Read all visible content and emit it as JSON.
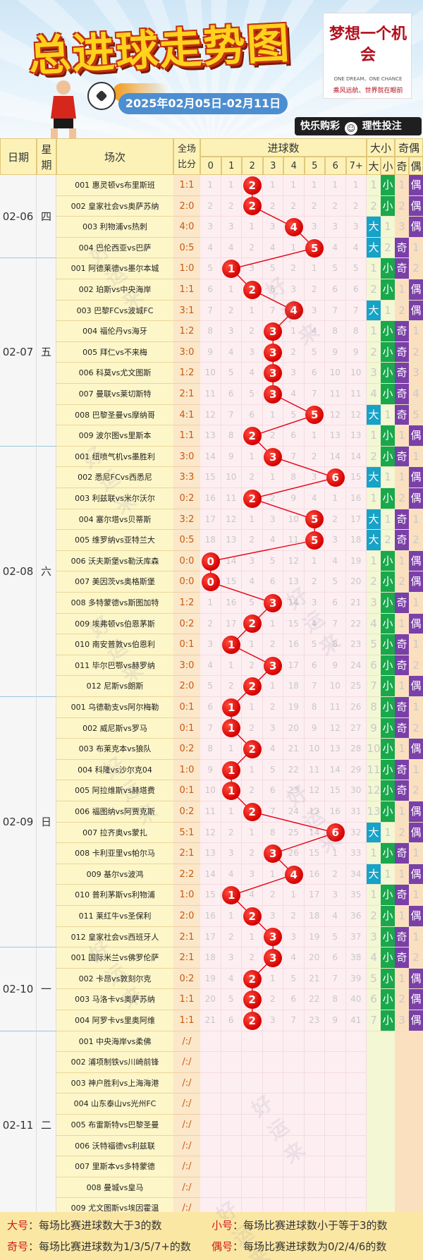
{
  "header": {
    "title": "总进球走势图",
    "date_range": "2025年02月05日-02月11日",
    "logo_text": "梦想一个机会",
    "logo_en": "ONE DREAM、ONE CHANCE",
    "logo_sub": "乘风远航、世界就在眼前",
    "slogan_left": "快乐购彩",
    "slogan_right": "理性投注",
    "watermark": "好运来"
  },
  "table_header": {
    "date": "日期",
    "week_top": "星",
    "week_bottom": "期",
    "match": "场次",
    "score_top": "全场",
    "score_bottom": "比分",
    "goals": "进球数",
    "goal_cols": [
      "0",
      "1",
      "2",
      "3",
      "4",
      "5",
      "6",
      "7+"
    ],
    "bigsmall": "大小",
    "big": "大",
    "small": "小",
    "oddeven": "奇偶",
    "odd": "奇",
    "even": "偶"
  },
  "colors": {
    "big": "#17a2c8",
    "small": "#19a84b",
    "odd": "#7b3fa8",
    "even": "#7b3fa8",
    "ball": "#e60012"
  },
  "chart_data": {
    "type": "table",
    "title": "总进球走势图",
    "days": [
      {
        "date": "02-06",
        "week": "四",
        "rows": 4
      },
      {
        "date": "02-07",
        "week": "五",
        "rows": 9
      },
      {
        "date": "02-08",
        "week": "六",
        "rows": 12
      },
      {
        "date": "02-09",
        "week": "日",
        "rows": 12
      },
      {
        "date": "02-10",
        "week": "一",
        "rows": 4
      },
      {
        "date": "02-11",
        "week": "二",
        "rows": 9
      }
    ],
    "matches": [
      {
        "name": "001 惠灵顿vs布里斯班",
        "score": "1:1",
        "goals": 2,
        "omit": [
          1,
          1,
          null,
          1,
          1,
          1,
          1,
          1
        ],
        "bs": "small",
        "bs_omit": 1,
        "oe": "even",
        "oe_omit": 1
      },
      {
        "name": "002 皇家社会vs奥萨苏纳",
        "score": "2:0",
        "goals": 2,
        "omit": [
          2,
          2,
          null,
          2,
          2,
          2,
          2,
          2
        ],
        "bs": "small",
        "bs_omit": 2,
        "oe": "even",
        "oe_omit": 2
      },
      {
        "name": "003 利物浦vs热刺",
        "score": "4:0",
        "goals": 4,
        "omit": [
          3,
          3,
          1,
          3,
          null,
          3,
          3,
          3
        ],
        "bs": "big",
        "bs_omit": 1,
        "oe": "even",
        "oe_omit": 3
      },
      {
        "name": "004 巴伦西亚vs巴萨",
        "score": "0:5",
        "goals": 5,
        "omit": [
          4,
          4,
          2,
          4,
          1,
          null,
          4,
          4
        ],
        "bs": "big",
        "bs_omit": 2,
        "oe": "odd",
        "oe_omit": 1
      },
      {
        "name": "001 阿德莱德vs墨尔本城",
        "score": "1:0",
        "goals": 1,
        "omit": [
          5,
          null,
          3,
          5,
          2,
          1,
          5,
          5
        ],
        "bs": "small",
        "bs_omit": 1,
        "oe": "odd",
        "oe_omit": 2
      },
      {
        "name": "002 珀斯vs中央海岸",
        "score": "1:1",
        "goals": 2,
        "omit": [
          6,
          1,
          null,
          6,
          3,
          2,
          6,
          6
        ],
        "bs": "small",
        "bs_omit": 2,
        "oe": "even",
        "oe_omit": 1
      },
      {
        "name": "003 巴黎FCvs波城FC",
        "score": "3:1",
        "goals": 4,
        "omit": [
          7,
          2,
          1,
          7,
          null,
          3,
          7,
          7
        ],
        "bs": "big",
        "bs_omit": 1,
        "oe": "even",
        "oe_omit": 2
      },
      {
        "name": "004 福伦丹vs海牙",
        "score": "1:2",
        "goals": 3,
        "omit": [
          8,
          3,
          2,
          null,
          1,
          4,
          8,
          8
        ],
        "bs": "small",
        "bs_omit": 1,
        "oe": "odd",
        "oe_omit": 1
      },
      {
        "name": "005 拜仁vs不来梅",
        "score": "3:0",
        "goals": 3,
        "omit": [
          9,
          4,
          3,
          null,
          2,
          5,
          9,
          9
        ],
        "bs": "small",
        "bs_omit": 2,
        "oe": "odd",
        "oe_omit": 2
      },
      {
        "name": "006 科莫vs尤文图斯",
        "score": "1:2",
        "goals": 3,
        "omit": [
          10,
          5,
          4,
          null,
          3,
          6,
          10,
          10
        ],
        "bs": "small",
        "bs_omit": 3,
        "oe": "odd",
        "oe_omit": 3
      },
      {
        "name": "007 曼联vs莱切斯特",
        "score": "2:1",
        "goals": 3,
        "omit": [
          11,
          6,
          5,
          null,
          4,
          7,
          11,
          11
        ],
        "bs": "small",
        "bs_omit": 4,
        "oe": "odd",
        "oe_omit": 4
      },
      {
        "name": "008 巴黎圣曼vs摩纳哥",
        "score": "4:1",
        "goals": 5,
        "omit": [
          12,
          7,
          6,
          1,
          5,
          null,
          12,
          12
        ],
        "bs": "big",
        "bs_omit": 1,
        "oe": "odd",
        "oe_omit": 5
      },
      {
        "name": "009 波尔图vs里斯本",
        "score": "1:1",
        "goals": 2,
        "omit": [
          13,
          8,
          null,
          2,
          6,
          1,
          13,
          13
        ],
        "bs": "small",
        "bs_omit": 1,
        "oe": "even",
        "oe_omit": 1
      },
      {
        "name": "001 纽喷气机vs墨胜利",
        "score": "3:0",
        "goals": 3,
        "omit": [
          14,
          9,
          1,
          null,
          7,
          2,
          14,
          14
        ],
        "bs": "small",
        "bs_omit": 2,
        "oe": "odd",
        "oe_omit": 1
      },
      {
        "name": "002 悉尼FCvs西悉尼",
        "score": "3:3",
        "goals": 6,
        "omit": [
          15,
          10,
          2,
          1,
          8,
          3,
          null,
          15
        ],
        "bs": "big",
        "bs_omit": 1,
        "oe": "even",
        "oe_omit": 1
      },
      {
        "name": "003 利兹联vs米尔沃尔",
        "score": "0:2",
        "goals": 2,
        "omit": [
          16,
          11,
          null,
          2,
          9,
          4,
          1,
          16
        ],
        "bs": "small",
        "bs_omit": 1,
        "oe": "even",
        "oe_omit": 2
      },
      {
        "name": "004 塞尔塔vs贝蒂斯",
        "score": "3:2",
        "goals": 5,
        "omit": [
          17,
          12,
          1,
          3,
          10,
          null,
          2,
          17
        ],
        "bs": "big",
        "bs_omit": 1,
        "oe": "odd",
        "oe_omit": 1
      },
      {
        "name": "005 维罗纳vs亚特兰大",
        "score": "0:5",
        "goals": 5,
        "omit": [
          18,
          13,
          2,
          4,
          11,
          null,
          3,
          18
        ],
        "bs": "big",
        "bs_omit": 2,
        "oe": "odd",
        "oe_omit": 2
      },
      {
        "name": "006 沃夫斯堡vs勒沃库森",
        "score": "0:0",
        "goals": 0,
        "omit": [
          null,
          14,
          3,
          5,
          12,
          1,
          4,
          19
        ],
        "bs": "small",
        "bs_omit": 1,
        "oe": "even",
        "oe_omit": 1
      },
      {
        "name": "007 美因茨vs奥格斯堡",
        "score": "0:0",
        "goals": 0,
        "omit": [
          null,
          15,
          4,
          6,
          13,
          2,
          5,
          20
        ],
        "bs": "small",
        "bs_omit": 2,
        "oe": "even",
        "oe_omit": 2
      },
      {
        "name": "008 多特蒙德vs斯图加特",
        "score": "1:2",
        "goals": 3,
        "omit": [
          1,
          16,
          5,
          null,
          14,
          3,
          6,
          21
        ],
        "bs": "small",
        "bs_omit": 3,
        "oe": "odd",
        "oe_omit": 1
      },
      {
        "name": "009 埃弗顿vs伯恩茅斯",
        "score": "0:2",
        "goals": 2,
        "omit": [
          2,
          17,
          null,
          1,
          15,
          4,
          7,
          22
        ],
        "bs": "small",
        "bs_omit": 4,
        "oe": "even",
        "oe_omit": 1
      },
      {
        "name": "010 南安普敦vs伯恩利",
        "score": "0:1",
        "goals": 1,
        "omit": [
          3,
          null,
          1,
          2,
          16,
          5,
          8,
          23
        ],
        "bs": "small",
        "bs_omit": 5,
        "oe": "odd",
        "oe_omit": 1
      },
      {
        "name": "011 毕尔巴鄂vs赫罗纳",
        "score": "3:0",
        "goals": 3,
        "omit": [
          4,
          1,
          2,
          null,
          17,
          6,
          9,
          24
        ],
        "bs": "small",
        "bs_omit": 6,
        "oe": "odd",
        "oe_omit": 2
      },
      {
        "name": "012 尼斯vs朗斯",
        "score": "2:0",
        "goals": 2,
        "omit": [
          5,
          2,
          null,
          1,
          18,
          7,
          10,
          25
        ],
        "bs": "small",
        "bs_omit": 7,
        "oe": "even",
        "oe_omit": 1
      },
      {
        "name": "001 乌德勒支vs阿尔梅勒",
        "score": "0:1",
        "goals": 1,
        "omit": [
          6,
          null,
          1,
          2,
          19,
          8,
          11,
          26
        ],
        "bs": "small",
        "bs_omit": 8,
        "oe": "odd",
        "oe_omit": 1
      },
      {
        "name": "002 威尼斯vs罗马",
        "score": "0:1",
        "goals": 1,
        "omit": [
          7,
          null,
          2,
          3,
          20,
          9,
          12,
          27
        ],
        "bs": "small",
        "bs_omit": 9,
        "oe": "odd",
        "oe_omit": 2
      },
      {
        "name": "003 布莱克本vs狼队",
        "score": "0:2",
        "goals": 2,
        "omit": [
          8,
          1,
          null,
          4,
          21,
          10,
          13,
          28
        ],
        "bs": "small",
        "bs_omit": 10,
        "oe": "even",
        "oe_omit": 1
      },
      {
        "name": "004 科隆vs沙尔克04",
        "score": "1:0",
        "goals": 1,
        "omit": [
          9,
          null,
          1,
          5,
          22,
          11,
          14,
          29
        ],
        "bs": "small",
        "bs_omit": 11,
        "oe": "odd",
        "oe_omit": 1
      },
      {
        "name": "005 阿拉维斯vs赫塔费",
        "score": "0:1",
        "goals": 1,
        "omit": [
          10,
          null,
          2,
          6,
          23,
          12,
          15,
          30
        ],
        "bs": "small",
        "bs_omit": 12,
        "oe": "odd",
        "oe_omit": 2
      },
      {
        "name": "006 福图纳vs阿贾克斯",
        "score": "0:2",
        "goals": 2,
        "omit": [
          11,
          1,
          null,
          7,
          24,
          13,
          16,
          31
        ],
        "bs": "small",
        "bs_omit": 13,
        "oe": "even",
        "oe_omit": 1
      },
      {
        "name": "007 拉齐奥vs蒙扎",
        "score": "5:1",
        "goals": 6,
        "omit": [
          12,
          2,
          1,
          8,
          25,
          14,
          null,
          32
        ],
        "bs": "big",
        "bs_omit": 1,
        "oe": "even",
        "oe_omit": 2
      },
      {
        "name": "008 卡利亚里vs帕尔马",
        "score": "2:1",
        "goals": 3,
        "omit": [
          13,
          3,
          2,
          null,
          26,
          15,
          1,
          33
        ],
        "bs": "small",
        "bs_omit": 1,
        "oe": "odd",
        "oe_omit": 1
      },
      {
        "name": "009 基尔vs波鸿",
        "score": "2:2",
        "goals": 4,
        "omit": [
          14,
          4,
          3,
          1,
          null,
          16,
          2,
          34
        ],
        "bs": "big",
        "bs_omit": 1,
        "oe": "even",
        "oe_omit": 1
      },
      {
        "name": "010 普利茅斯vs利物浦",
        "score": "1:0",
        "goals": 1,
        "omit": [
          15,
          null,
          4,
          2,
          1,
          17,
          3,
          35
        ],
        "bs": "small",
        "bs_omit": 1,
        "oe": "odd",
        "oe_omit": 1
      },
      {
        "name": "011 莱红牛vs圣保利",
        "score": "2:0",
        "goals": 2,
        "omit": [
          16,
          1,
          null,
          3,
          2,
          18,
          4,
          36
        ],
        "bs": "small",
        "bs_omit": 2,
        "oe": "even",
        "oe_omit": 1
      },
      {
        "name": "012 皇家社会vs西班牙人",
        "score": "2:1",
        "goals": 3,
        "omit": [
          17,
          2,
          1,
          null,
          3,
          19,
          5,
          37
        ],
        "bs": "small",
        "bs_omit": 3,
        "oe": "odd",
        "oe_omit": 1
      },
      {
        "name": "001 国际米兰vs佛罗伦萨",
        "score": "2:1",
        "goals": 3,
        "omit": [
          18,
          3,
          2,
          null,
          4,
          20,
          6,
          38
        ],
        "bs": "small",
        "bs_omit": 4,
        "oe": "odd",
        "oe_omit": 2
      },
      {
        "name": "002 卡昂vs敦刻尔克",
        "score": "0:2",
        "goals": 2,
        "omit": [
          19,
          4,
          null,
          1,
          5,
          21,
          7,
          39
        ],
        "bs": "small",
        "bs_omit": 5,
        "oe": "even",
        "oe_omit": 1
      },
      {
        "name": "003 马洛卡vs奥萨苏纳",
        "score": "1:1",
        "goals": 2,
        "omit": [
          20,
          5,
          null,
          2,
          6,
          22,
          8,
          40
        ],
        "bs": "small",
        "bs_omit": 6,
        "oe": "even",
        "oe_omit": 2
      },
      {
        "name": "004 阿罗卡vs里奥阿维",
        "score": "1:1",
        "goals": 2,
        "omit": [
          21,
          6,
          null,
          3,
          7,
          23,
          9,
          41
        ],
        "bs": "small",
        "bs_omit": 7,
        "oe": "even",
        "oe_omit": 3
      },
      {
        "name": "001 中央海岸vs柔佛",
        "score": "/:/"
      },
      {
        "name": "002 浦项制铁vs川崎前锋",
        "score": "/:/"
      },
      {
        "name": "003 神户胜利vs上海海港",
        "score": "/:/"
      },
      {
        "name": "004 山东泰山vs光州FC",
        "score": "/:/"
      },
      {
        "name": "005 布雷斯特vs巴黎圣曼",
        "score": "/:/"
      },
      {
        "name": "006 沃特福德vs利兹联",
        "score": "/:/"
      },
      {
        "name": "007 里斯本vs多特蒙德",
        "score": "/:/"
      },
      {
        "name": "008 曼城vs皇马",
        "score": "/:/"
      },
      {
        "name": "009 尤文图斯vs埃因霍温",
        "score": "/:/"
      }
    ]
  },
  "footer": {
    "big_label": "大号",
    "big_desc": "：每场比赛进球数大于3的数",
    "small_label": "小号",
    "small_desc": "：每场比赛进球数小于等于3的数",
    "odd_label": "奇号",
    "odd_desc": "：每场比赛进球数为1/3/5/7+的数",
    "even_label": "偶号",
    "even_desc": "：每场比赛进球数为0/2/4/6的数"
  }
}
